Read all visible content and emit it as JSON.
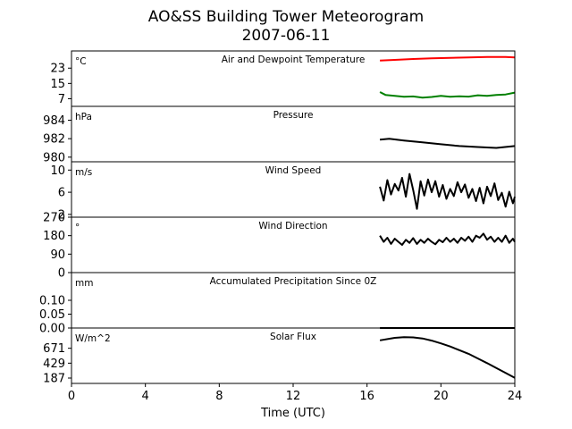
{
  "figure": {
    "title_line1": "AO&SS Building Tower Meteorogram",
    "title_line2": "2007-06-11",
    "xlabel": "Time (UTC)"
  },
  "chart_data": {
    "type": "line",
    "x_ticks": [
      0,
      4,
      8,
      12,
      16,
      20,
      24
    ],
    "x_tick_labels": [
      "0",
      "4",
      "8",
      "12",
      "16",
      "20",
      "24"
    ],
    "xlim": [
      0,
      24
    ],
    "panels": [
      {
        "id": "temp",
        "title": "Air and Dewpoint Temperature",
        "unit": "°C",
        "ylim": [
          3,
          32
        ],
        "y_ticks": [
          7,
          15,
          23
        ],
        "y_tick_labels": [
          "7",
          "15",
          "23"
        ],
        "series": [
          {
            "color": "#ff0000",
            "points": [
              [
                16.7,
                27.0
              ],
              [
                17.5,
                27.3
              ],
              [
                18.5,
                27.8
              ],
              [
                19.5,
                28.1
              ],
              [
                20.5,
                28.4
              ],
              [
                21.5,
                28.6
              ],
              [
                22.5,
                28.8
              ],
              [
                23.5,
                28.8
              ],
              [
                24.0,
                28.6
              ]
            ]
          },
          {
            "color": "#008000",
            "points": [
              [
                16.7,
                10.5
              ],
              [
                17.0,
                9.0
              ],
              [
                17.5,
                8.5
              ],
              [
                18.0,
                8.0
              ],
              [
                18.5,
                8.2
              ],
              [
                19.0,
                7.6
              ],
              [
                19.5,
                7.9
              ],
              [
                20.0,
                8.5
              ],
              [
                20.5,
                8.0
              ],
              [
                21.0,
                8.3
              ],
              [
                21.5,
                8.1
              ],
              [
                22.0,
                8.8
              ],
              [
                22.5,
                8.5
              ],
              [
                23.0,
                9.0
              ],
              [
                23.5,
                9.2
              ],
              [
                24.0,
                10.2
              ]
            ]
          }
        ]
      },
      {
        "id": "pressure",
        "title": "Pressure",
        "unit": "hPa",
        "ylim": [
          979.5,
          985.5
        ],
        "y_ticks": [
          980,
          982,
          984
        ],
        "y_tick_labels": [
          "980",
          "982",
          "984"
        ],
        "series": [
          {
            "color": "#000000",
            "points": [
              [
                16.7,
                981.9
              ],
              [
                17.2,
                982.0
              ],
              [
                18.0,
                981.8
              ],
              [
                19.0,
                981.6
              ],
              [
                20.0,
                981.4
              ],
              [
                21.0,
                981.2
              ],
              [
                22.0,
                981.1
              ],
              [
                23.0,
                981.0
              ],
              [
                24.0,
                981.2
              ]
            ]
          }
        ]
      },
      {
        "id": "wind_speed",
        "title": "Wind Speed",
        "unit": "m/s",
        "ylim": [
          1.5,
          11.5
        ],
        "y_ticks": [
          2,
          6,
          10
        ],
        "y_tick_labels": [
          "2",
          "6",
          "10"
        ],
        "series": [
          {
            "color": "#000000",
            "points": [
              [
                16.7,
                7.0
              ],
              [
                16.9,
                4.5
              ],
              [
                17.1,
                8.2
              ],
              [
                17.3,
                5.6
              ],
              [
                17.5,
                7.5
              ],
              [
                17.7,
                6.3
              ],
              [
                17.9,
                8.6
              ],
              [
                18.1,
                5.2
              ],
              [
                18.3,
                9.3
              ],
              [
                18.5,
                6.4
              ],
              [
                18.7,
                3.0
              ],
              [
                18.9,
                8.0
              ],
              [
                19.1,
                5.4
              ],
              [
                19.3,
                8.3
              ],
              [
                19.5,
                6.0
              ],
              [
                19.7,
                8.0
              ],
              [
                19.9,
                5.2
              ],
              [
                20.1,
                7.3
              ],
              [
                20.3,
                4.8
              ],
              [
                20.5,
                6.6
              ],
              [
                20.7,
                5.3
              ],
              [
                20.9,
                7.8
              ],
              [
                21.1,
                6.0
              ],
              [
                21.3,
                7.4
              ],
              [
                21.5,
                5.0
              ],
              [
                21.7,
                6.6
              ],
              [
                21.9,
                4.4
              ],
              [
                22.1,
                6.8
              ],
              [
                22.3,
                4.0
              ],
              [
                22.5,
                7.0
              ],
              [
                22.7,
                5.3
              ],
              [
                22.9,
                7.6
              ],
              [
                23.1,
                4.6
              ],
              [
                23.3,
                5.9
              ],
              [
                23.5,
                3.4
              ],
              [
                23.7,
                6.1
              ],
              [
                23.9,
                4.0
              ],
              [
                24.0,
                5.2
              ]
            ]
          }
        ]
      },
      {
        "id": "wind_dir",
        "title": "Wind Direction",
        "unit": "°",
        "ylim": [
          0,
          270
        ],
        "y_ticks": [
          0,
          90,
          180,
          270
        ],
        "y_tick_labels": [
          "0",
          "90",
          "180",
          "270"
        ],
        "series": [
          {
            "color": "#000000",
            "points": [
              [
                16.7,
                180
              ],
              [
                16.9,
                150
              ],
              [
                17.1,
                170
              ],
              [
                17.3,
                140
              ],
              [
                17.5,
                165
              ],
              [
                17.7,
                150
              ],
              [
                17.9,
                135
              ],
              [
                18.1,
                160
              ],
              [
                18.3,
                145
              ],
              [
                18.5,
                168
              ],
              [
                18.7,
                140
              ],
              [
                18.9,
                160
              ],
              [
                19.1,
                145
              ],
              [
                19.3,
                165
              ],
              [
                19.5,
                150
              ],
              [
                19.7,
                138
              ],
              [
                19.9,
                160
              ],
              [
                20.1,
                148
              ],
              [
                20.3,
                170
              ],
              [
                20.5,
                150
              ],
              [
                20.7,
                165
              ],
              [
                20.9,
                145
              ],
              [
                21.1,
                170
              ],
              [
                21.3,
                155
              ],
              [
                21.5,
                175
              ],
              [
                21.7,
                150
              ],
              [
                21.9,
                180
              ],
              [
                22.1,
                170
              ],
              [
                22.3,
                190
              ],
              [
                22.5,
                160
              ],
              [
                22.7,
                175
              ],
              [
                22.9,
                150
              ],
              [
                23.1,
                170
              ],
              [
                23.3,
                150
              ],
              [
                23.5,
                180
              ],
              [
                23.7,
                145
              ],
              [
                23.9,
                165
              ],
              [
                24.0,
                150
              ]
            ]
          }
        ]
      },
      {
        "id": "precip",
        "title": "Accumulated Precipitation Since 0Z",
        "unit": "mm",
        "ylim": [
          0,
          0.2
        ],
        "y_ticks": [
          0.0,
          0.05,
          0.1
        ],
        "y_tick_labels": [
          "0.00",
          "0.05",
          "0.10"
        ],
        "series": [
          {
            "color": "#000000",
            "points": [
              [
                16.7,
                0.0
              ],
              [
                24.0,
                0.0
              ]
            ]
          }
        ]
      },
      {
        "id": "solar",
        "title": "Solar Flux",
        "unit": "W/m^2",
        "ylim": [
          100,
          1000
        ],
        "y_ticks": [
          187,
          429,
          671
        ],
        "y_tick_labels": [
          "187",
          "429",
          "671"
        ],
        "series": [
          {
            "color": "#000000",
            "points": [
              [
                16.7,
                800
              ],
              [
                17.5,
                840
              ],
              [
                18.0,
                852
              ],
              [
                18.5,
                848
              ],
              [
                19.0,
                830
              ],
              [
                19.5,
                795
              ],
              [
                20.0,
                750
              ],
              [
                20.5,
                700
              ],
              [
                21.0,
                640
              ],
              [
                21.5,
                580
              ],
              [
                22.0,
                505
              ],
              [
                22.5,
                430
              ],
              [
                23.0,
                350
              ],
              [
                23.5,
                270
              ],
              [
                24.0,
                190
              ]
            ]
          }
        ]
      }
    ]
  }
}
